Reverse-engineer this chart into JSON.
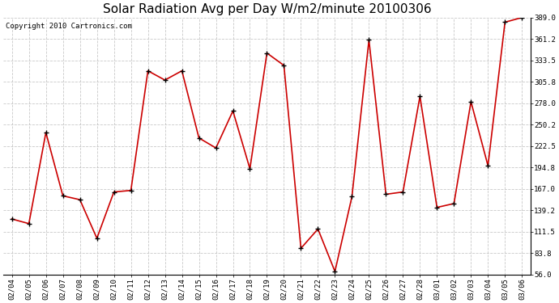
{
  "title": "Solar Radiation Avg per Day W/m2/minute 20100306",
  "copyright": "Copyright 2010 Cartronics.com",
  "dates": [
    "02/04",
    "02/05",
    "02/06",
    "02/07",
    "02/08",
    "02/09",
    "02/10",
    "02/11",
    "02/12",
    "02/13",
    "02/14",
    "02/15",
    "02/16",
    "02/17",
    "02/18",
    "02/19",
    "02/20",
    "02/21",
    "02/22",
    "02/23",
    "02/24",
    "02/25",
    "02/26",
    "02/27",
    "02/28",
    "03/01",
    "03/02",
    "03/03",
    "03/04",
    "03/05",
    "03/06"
  ],
  "values": [
    128,
    122,
    240,
    158,
    153,
    103,
    163,
    165,
    320,
    308,
    320,
    233,
    220,
    268,
    193,
    343,
    327,
    90,
    115,
    60,
    157,
    360,
    160,
    163,
    287,
    143,
    148,
    280,
    197,
    383,
    389
  ],
  "line_color": "#cc0000",
  "marker_color": "#000000",
  "bg_color": "#ffffff",
  "grid_color": "#bbbbbb",
  "ylim": [
    56.0,
    389.0
  ],
  "yticks": [
    56.0,
    83.8,
    111.5,
    139.2,
    167.0,
    194.8,
    222.5,
    250.2,
    278.0,
    305.8,
    333.5,
    361.2,
    389.0
  ],
  "title_fontsize": 11,
  "copyright_fontsize": 6.5,
  "tick_fontsize": 6.5
}
